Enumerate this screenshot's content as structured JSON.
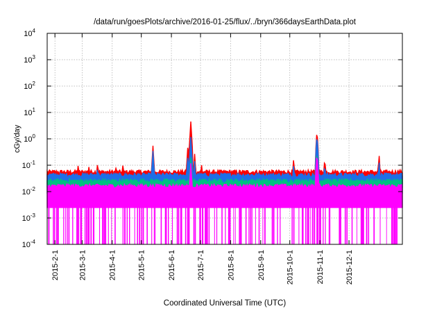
{
  "chart_data": {
    "type": "area",
    "title": "/data/run/goesPlots/archive/2016-01-25/flux/../bryn/366daysEarthData.plot",
    "xlabel": "Coordinated Universal Time (UTC)",
    "ylabel": "cGy/day",
    "yscale": "log",
    "ylim": [
      0.0001,
      10000
    ],
    "xlim": [
      "2015-01-24",
      "2016-01-25"
    ],
    "grid": true,
    "y_ticks": [
      {
        "value": 0.0001,
        "base": "10",
        "exp": "-4"
      },
      {
        "value": 0.001,
        "base": "10",
        "exp": "-3"
      },
      {
        "value": 0.01,
        "base": "10",
        "exp": "-2"
      },
      {
        "value": 0.1,
        "base": "10",
        "exp": "-1"
      },
      {
        "value": 1,
        "base": "10",
        "exp": "0"
      },
      {
        "value": 10,
        "base": "10",
        "exp": "1"
      },
      {
        "value": 100,
        "base": "10",
        "exp": "2"
      },
      {
        "value": 1000,
        "base": "10",
        "exp": "3"
      },
      {
        "value": 10000,
        "base": "10",
        "exp": "4"
      }
    ],
    "x_ticks": [
      {
        "date": "2015-02-01",
        "label": "2015-2-1"
      },
      {
        "date": "2015-03-01",
        "label": "2015-3-1"
      },
      {
        "date": "2015-04-01",
        "label": "2015-4-1"
      },
      {
        "date": "2015-05-01",
        "label": "2015-5-1"
      },
      {
        "date": "2015-06-01",
        "label": "2015-6-1"
      },
      {
        "date": "2015-07-01",
        "label": "2015-7-1"
      },
      {
        "date": "2015-08-01",
        "label": "2015-8-1"
      },
      {
        "date": "2015-09-01",
        "label": "2015-9-1"
      },
      {
        "date": "2015-10-01",
        "label": "2015-10-1"
      },
      {
        "date": "2015-11-01",
        "label": "2015-11-1"
      },
      {
        "date": "2015-12-01",
        "label": "2015-12-1"
      }
    ],
    "series": [
      {
        "color": "#ff0000",
        "baseline": 0.055,
        "values": [
          [
            "2015-02-25",
            0.12
          ],
          [
            "2015-03-08",
            0.09
          ],
          [
            "2015-03-17",
            0.15
          ],
          [
            "2015-04-05",
            0.1
          ],
          [
            "2015-04-12",
            0.1
          ],
          [
            "2015-05-13",
            0.55
          ],
          [
            "2015-06-18",
            0.6
          ],
          [
            "2015-06-21",
            4.6
          ],
          [
            "2015-06-25",
            0.28
          ],
          [
            "2015-07-02",
            0.12
          ],
          [
            "2015-09-20",
            0.1
          ],
          [
            "2015-10-05",
            0.2
          ],
          [
            "2015-10-29",
            2.2
          ],
          [
            "2015-11-06",
            0.2
          ],
          [
            "2016-01-01",
            0.27
          ]
        ]
      },
      {
        "color": "#1e6fe6",
        "baseline": 0.042,
        "values": [
          [
            "2015-03-17",
            0.1
          ],
          [
            "2015-05-13",
            0.35
          ],
          [
            "2015-06-18",
            0.25
          ],
          [
            "2015-06-21",
            1.2
          ],
          [
            "2015-06-25",
            0.15
          ],
          [
            "2015-10-05",
            0.12
          ],
          [
            "2015-10-29",
            1.5
          ],
          [
            "2015-11-06",
            0.12
          ],
          [
            "2016-01-01",
            0.15
          ]
        ]
      },
      {
        "color": "#00c080",
        "baseline": 0.025,
        "values": [
          [
            "2015-06-21",
            0.2
          ],
          [
            "2015-10-29",
            0.35
          ]
        ]
      },
      {
        "color": "#ff00ff",
        "baseline": 0.016,
        "floor": 0.0025,
        "values": [
          [
            "2015-06-21",
            0.12
          ],
          [
            "2015-10-29",
            0.3
          ]
        ]
      }
    ]
  }
}
